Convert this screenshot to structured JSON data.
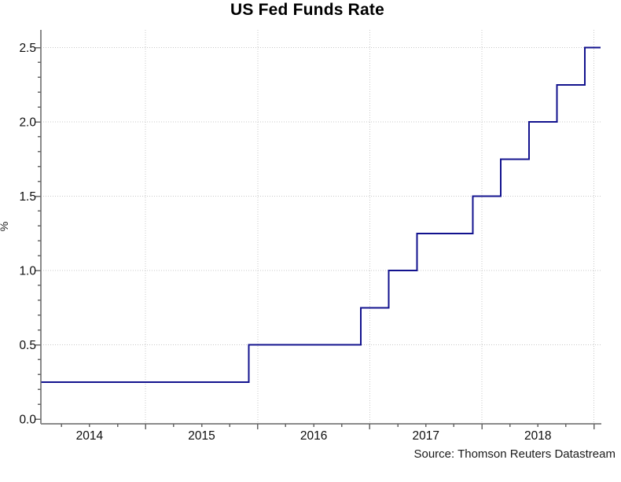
{
  "chart_data": {
    "type": "line",
    "line_style": "step",
    "title": "US Fed Funds Rate",
    "xlabel": "",
    "ylabel": "%",
    "source": "Source: Thomson Reuters Datastream",
    "x_range_decimal_years": [
      2014.07,
      2019.07
    ],
    "ylim": [
      0,
      2.5
    ],
    "y_major_ticks": [
      "0.0",
      "0.5",
      "1.0",
      "1.5",
      "2.0",
      "2.5"
    ],
    "y_minor_tick_step": 0.1,
    "x_tick_labels": [
      {
        "label": "2014",
        "x": 2014.5
      },
      {
        "label": "2015",
        "x": 2015.5
      },
      {
        "label": "2016",
        "x": 2016.5
      },
      {
        "label": "2017",
        "x": 2017.5
      },
      {
        "label": "2018",
        "x": 2018.5
      }
    ],
    "x_gridline_years": [
      2015,
      2016,
      2017,
      2018,
      2019
    ],
    "x_minor_tick_step_years": 0.25,
    "grid": "dotted",
    "legend": "none",
    "colors": {
      "line": "#12128e",
      "grid": "#c8c8c8",
      "axis": "#8a8a8a",
      "tick": "#666666",
      "text": "#000000",
      "background": "#ffffff"
    },
    "series": [
      {
        "name": "US Fed Funds Rate",
        "unit": "%",
        "step_points": [
          {
            "x": 2014.07,
            "rate": 0.25,
            "date": "start (Jan 2014)"
          },
          {
            "x": 2015.92,
            "rate": 0.5,
            "date": "Dec 2015"
          },
          {
            "x": 2016.92,
            "rate": 0.75,
            "date": "Dec 2016"
          },
          {
            "x": 2017.17,
            "rate": 1.0,
            "date": "Mar 2017"
          },
          {
            "x": 2017.42,
            "rate": 1.25,
            "date": "Jun 2017"
          },
          {
            "x": 2017.92,
            "rate": 1.5,
            "date": "Dec 2017"
          },
          {
            "x": 2018.17,
            "rate": 1.75,
            "date": "Mar 2018"
          },
          {
            "x": 2018.42,
            "rate": 2.0,
            "date": "Jun 2018"
          },
          {
            "x": 2018.67,
            "rate": 2.25,
            "date": "Sep 2018"
          },
          {
            "x": 2018.92,
            "rate": 2.5,
            "date": "Dec 2018"
          }
        ],
        "end_x": 2019.06,
        "end_rate": 2.5
      }
    ]
  }
}
